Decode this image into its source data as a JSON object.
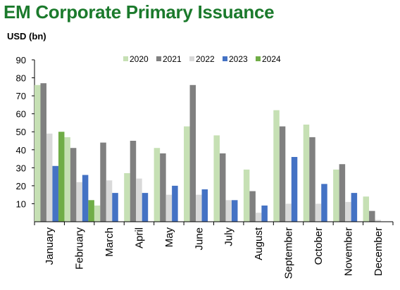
{
  "title": "EM Corporate Primary Issuance",
  "unit_label": "USD (bn)",
  "chart_data": {
    "type": "bar",
    "title": "EM Corporate Primary Issuance",
    "ylabel": "USD (bn)",
    "xlabel": "",
    "ylim": [
      0,
      90
    ],
    "yticks": [
      10,
      20,
      30,
      40,
      50,
      60,
      70,
      80,
      90
    ],
    "grid": false,
    "legend_position": "top",
    "categories": [
      "January",
      "February",
      "March",
      "April",
      "May",
      "June",
      "July",
      "August",
      "September",
      "October",
      "November",
      "December"
    ],
    "series": [
      {
        "name": "2020",
        "color": "#c6e0b4",
        "values": [
          76,
          47,
          9,
          27,
          41,
          53,
          48,
          29,
          62,
          54,
          29,
          14
        ]
      },
      {
        "name": "2021",
        "color": "#808080",
        "values": [
          77,
          41,
          44,
          45,
          38,
          76,
          38,
          17,
          53,
          47,
          32,
          6
        ]
      },
      {
        "name": "2022",
        "color": "#d9d9d9",
        "values": [
          49,
          22,
          23,
          24,
          15,
          15,
          12,
          5,
          10,
          10,
          11,
          1
        ]
      },
      {
        "name": "2023",
        "color": "#4472c4",
        "values": [
          31,
          26,
          16,
          16,
          20,
          18,
          12,
          9,
          36,
          21,
          16,
          null
        ]
      },
      {
        "name": "2024",
        "color": "#70ad47",
        "values": [
          50,
          12,
          null,
          null,
          null,
          null,
          null,
          null,
          null,
          null,
          null,
          null
        ]
      }
    ]
  }
}
